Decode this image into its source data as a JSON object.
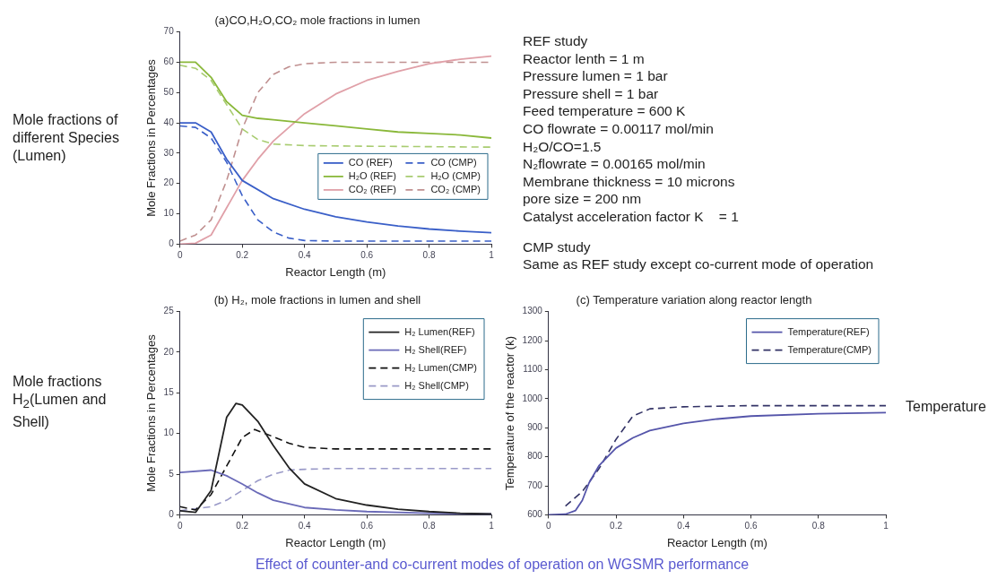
{
  "chart_data": [
    {
      "type": "line",
      "title": "(a)CO,H₂O,CO₂ mole fractions in lumen",
      "xlabel": "Reactor Length (m)",
      "ylabel": "Mole Fractions in Percentages",
      "xlim": [
        0,
        1
      ],
      "xticks": [
        0,
        0.2,
        0.4,
        0.6,
        0.8,
        1
      ],
      "ylim": [
        0,
        70
      ],
      "yticks": [
        0,
        10,
        20,
        30,
        40,
        50,
        60,
        70
      ],
      "legend": "right",
      "marker": "none",
      "annotations": [
        "Mole fractions of different Species (Lumen)"
      ],
      "series": [
        {
          "name": "CO (REF)",
          "color": "#3a5fc8",
          "line_style": "solid",
          "x": [
            0,
            0.05,
            0.1,
            0.15,
            0.2,
            0.3,
            0.4,
            0.5,
            0.6,
            0.7,
            0.8,
            0.9,
            1
          ],
          "values": [
            40,
            40,
            37,
            28,
            21,
            15,
            11.5,
            9,
            7.3,
            6,
            5,
            4.3,
            3.8
          ]
        },
        {
          "name": "H₂O (REF)",
          "color": "#8ab83a",
          "line_style": "solid",
          "x": [
            0,
            0.05,
            0.1,
            0.15,
            0.2,
            0.25,
            0.3,
            0.4,
            0.5,
            0.6,
            0.7,
            0.8,
            0.9,
            1
          ],
          "values": [
            60,
            60,
            55,
            47,
            42.5,
            41.5,
            41,
            40,
            39,
            38,
            37,
            36.5,
            36,
            35
          ]
        },
        {
          "name": "CO₂ (REF)",
          "color": "#e0a0a8",
          "line_style": "solid",
          "x": [
            0,
            0.05,
            0.1,
            0.15,
            0.2,
            0.25,
            0.3,
            0.4,
            0.5,
            0.6,
            0.7,
            0.8,
            0.9,
            1
          ],
          "values": [
            0,
            0.3,
            3,
            12,
            21,
            28,
            34,
            43,
            49.5,
            54,
            57,
            59.5,
            61,
            62
          ]
        },
        {
          "name": "CO (CMP)",
          "color": "#3a5fc8",
          "line_style": "dashed",
          "x": [
            0,
            0.05,
            0.1,
            0.15,
            0.2,
            0.25,
            0.3,
            0.35,
            0.4,
            0.5,
            0.6,
            1
          ],
          "values": [
            39,
            38.5,
            35,
            27,
            16,
            8,
            4,
            2,
            1.2,
            1,
            1,
            1
          ]
        },
        {
          "name": "H₂O (CMP)",
          "color": "#a8cc70",
          "line_style": "dashed",
          "x": [
            0,
            0.05,
            0.1,
            0.15,
            0.2,
            0.25,
            0.3,
            0.4,
            0.6,
            1
          ],
          "values": [
            59,
            58,
            54,
            46,
            38,
            34.5,
            33,
            32.5,
            32.3,
            32
          ]
        },
        {
          "name": "CO₂ (CMP)",
          "color": "#c09090",
          "line_style": "dashed",
          "x": [
            0,
            0.05,
            0.1,
            0.15,
            0.2,
            0.25,
            0.3,
            0.35,
            0.4,
            0.5,
            1
          ],
          "values": [
            1,
            3,
            8,
            21,
            38,
            50,
            56,
            58.5,
            59.5,
            60,
            60
          ]
        }
      ]
    },
    {
      "type": "line",
      "title": "(b) H₂, mole fractions in lumen and shell",
      "xlabel": "Reactor Length (m)",
      "ylabel": "Mole Fractions in Percentages",
      "xlim": [
        0,
        1
      ],
      "xticks": [
        0,
        0.2,
        0.4,
        0.6,
        0.8,
        1
      ],
      "ylim": [
        0,
        25
      ],
      "yticks": [
        0,
        5,
        10,
        15,
        20,
        25
      ],
      "legend": "top right",
      "marker": "none",
      "annotations": [
        "Mole fractions H$_{2}$(Lumen and Shell)"
      ],
      "series": [
        {
          "name": "H₂ Lumen(REF)",
          "color": "#222222",
          "line_style": "solid",
          "x": [
            0,
            0.05,
            0.1,
            0.15,
            0.18,
            0.2,
            0.25,
            0.3,
            0.35,
            0.4,
            0.5,
            0.6,
            0.7,
            0.8,
            0.9,
            1
          ],
          "values": [
            0.5,
            0.3,
            3,
            12,
            13.7,
            13.5,
            11.5,
            8.5,
            5.8,
            3.8,
            2,
            1.2,
            0.7,
            0.4,
            0.2,
            0.1
          ]
        },
        {
          "name": "H₂ Shell(REF)",
          "color": "#6a6ab8",
          "line_style": "solid",
          "x": [
            0,
            0.1,
            0.15,
            0.2,
            0.25,
            0.3,
            0.4,
            0.5,
            0.6,
            0.8,
            1
          ],
          "values": [
            5.2,
            5.5,
            4.8,
            3.8,
            2.7,
            1.8,
            0.9,
            0.6,
            0.4,
            0.2,
            0.1
          ]
        },
        {
          "name": "H₂ Lumen(CMP)",
          "color": "#111111",
          "line_style": "dashed",
          "x": [
            0,
            0.05,
            0.1,
            0.15,
            0.2,
            0.24,
            0.3,
            0.35,
            0.4,
            0.5,
            1
          ],
          "values": [
            1,
            0.6,
            2.5,
            6,
            9.5,
            10.5,
            9.6,
            8.8,
            8.3,
            8.1,
            8.1
          ]
        },
        {
          "name": "H₂ Shell(CMP)",
          "color": "#9a9ac8",
          "line_style": "dashed",
          "x": [
            0,
            0.1,
            0.15,
            0.2,
            0.25,
            0.3,
            0.35,
            0.4,
            0.5,
            1
          ],
          "values": [
            0.5,
            1,
            1.8,
            3,
            4.2,
            5,
            5.5,
            5.6,
            5.7,
            5.7
          ]
        }
      ]
    },
    {
      "type": "line",
      "title": "(c) Temperature variation along reactor length",
      "xlabel": "Reactor Length (m)",
      "ylabel": "Temperature of the reactor (k)",
      "xlim": [
        0,
        1
      ],
      "xticks": [
        0,
        0.2,
        0.4,
        0.6,
        0.8,
        1
      ],
      "ylim": [
        600,
        1300
      ],
      "yticks": [
        600,
        700,
        800,
        900,
        1000,
        1100,
        1200,
        1300
      ],
      "legend": "top right",
      "marker": "none",
      "annotations": [
        "Temperature"
      ],
      "series": [
        {
          "name": "Temperature(REF)",
          "color": "#5555aa",
          "line_style": "solid",
          "x": [
            0,
            0.05,
            0.08,
            0.1,
            0.12,
            0.15,
            0.2,
            0.25,
            0.3,
            0.4,
            0.5,
            0.6,
            0.8,
            1
          ],
          "values": [
            600,
            602,
            615,
            650,
            710,
            770,
            830,
            865,
            890,
            915,
            930,
            940,
            948,
            952
          ]
        },
        {
          "name": "Temperature(CMP)",
          "color": "#333366",
          "line_style": "dashed",
          "x": [
            0.05,
            0.1,
            0.15,
            0.2,
            0.25,
            0.3,
            0.4,
            0.6,
            1
          ],
          "values": [
            630,
            680,
            760,
            860,
            940,
            965,
            972,
            976,
            976
          ]
        }
      ]
    },
    {
      "type": "other",
      "title": "REF study",
      "annotations": [
        "Reactor lenth = 1 m",
        "Pressure lumen = 1 bar",
        "Pressure shell = 1 bar",
        "Feed temperature = 600 K",
        "CO flowrate = 0.00117 mol/min",
        "H₂O/CO=1.5",
        "N₂flowrate = 0.00165 mol/min",
        "Membrane thickness = 10 microns",
        "pore size = 200 nm",
        "Catalyst acceleration factor K    = 1",
        "CMP study",
        "Same as REF study except co-current mode of operation",
        "Effect of counter-and co-current modes of operation on WGSMR performance"
      ]
    }
  ]
}
